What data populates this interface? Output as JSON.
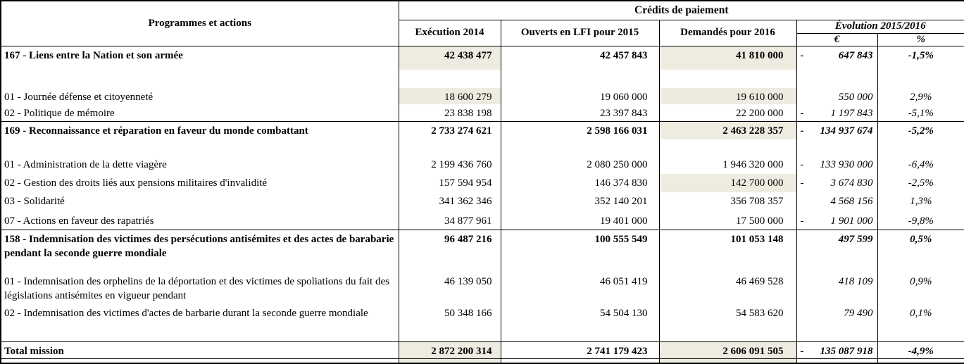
{
  "colors": {
    "shade": "#eeece1",
    "border": "#000000"
  },
  "header": {
    "programmes": "Programmes et actions",
    "credits": "Crédits de paiement",
    "execution": "Exécution 2014",
    "lfi": "Ouverts en LFI pour 2015",
    "demandes": "Demandés pour 2016",
    "evolution": "Évolution 2015/2016",
    "euro": "€",
    "percent": "%"
  },
  "rows": [
    {
      "label": "167 - Liens entre la Nation et son armée",
      "execution": "42 438 477",
      "lfi": "42 457 843",
      "demandes": "41 810 000",
      "evolution_sign": "-",
      "evolution_value": "647 843",
      "percent": "-1,5%"
    },
    {
      "label": "01 - Journée défense et citoyenneté",
      "execution": "18 600 279",
      "lfi": "19 060 000",
      "demandes": "19 610 000",
      "evolution_sign": "",
      "evolution_value": "550 000",
      "percent": "2,9%"
    },
    {
      "label": "02 - Politique de mémoire",
      "execution": "23 838 198",
      "lfi": "23 397 843",
      "demandes": "22 200 000",
      "evolution_sign": "-",
      "evolution_value": "1 197 843",
      "percent": "-5,1%"
    },
    {
      "label": "169 - Reconnaissance et réparation en faveur du monde combattant",
      "execution": "2 733 274 621",
      "lfi": "2 598 166 031",
      "demandes": "2 463 228 357",
      "evolution_sign": "-",
      "evolution_value": "134 937 674",
      "percent": "-5,2%"
    },
    {
      "label": "01 -  Administration de la dette viagère",
      "execution": "2 199 436 760",
      "lfi": "2 080 250 000",
      "demandes": "1 946 320 000",
      "evolution_sign": "-",
      "evolution_value": "133 930 000",
      "percent": "-6,4%"
    },
    {
      "label": "02 -  Gestion des droits liés aux pensions militaires d'invalidité",
      "execution": "157 594 954",
      "lfi": "146 374 830",
      "demandes": "142 700 000",
      "evolution_sign": "-",
      "evolution_value": "3 674 830",
      "percent": "-2,5%"
    },
    {
      "label": "03 - Solidarité",
      "execution": "341 362 346",
      "lfi": "352 140 201",
      "demandes": "356 708 357",
      "evolution_sign": "",
      "evolution_value": "4 568 156",
      "percent": "1,3%"
    },
    {
      "label": "07 - Actions en faveur des rapatriés",
      "execution": "34 877 961",
      "lfi": "19 401 000",
      "demandes": "17 500 000",
      "evolution_sign": "-",
      "evolution_value": "1 901 000",
      "percent": "-9,8%"
    },
    {
      "label": "158 - Indemnisation des victimes des persécutions antisémites et des actes de barabarie pendant la seconde guerre mondiale",
      "execution": "96 487 216",
      "lfi": "100 555 549",
      "demandes": "101 053 148",
      "evolution_sign": "",
      "evolution_value": "497 599",
      "percent": "0,5%"
    },
    {
      "label": "01 - Indemnisation des orphelins de la déportation et des victimes de spoliations du fait des législations antisémites en vigueur pendant",
      "execution": "46 139 050",
      "lfi": "46 051 419",
      "demandes": "46 469 528",
      "evolution_sign": "",
      "evolution_value": "418 109",
      "percent": "0,9%"
    },
    {
      "label": "02 - Indemnisation des victimes d'actes de barbarie durant la seconde guerre mondiale",
      "execution": "50 348 166",
      "lfi": "54 504 130",
      "demandes": "54 583 620",
      "evolution_sign": "",
      "evolution_value": "79 490",
      "percent": "0,1%"
    },
    {
      "label": "Total mission",
      "execution": "2 872 200 314",
      "lfi": "2 741 179 423",
      "demandes": "2 606 091 505",
      "evolution_sign": "-",
      "evolution_value": "135 087 918",
      "percent": "-4,9%"
    }
  ]
}
